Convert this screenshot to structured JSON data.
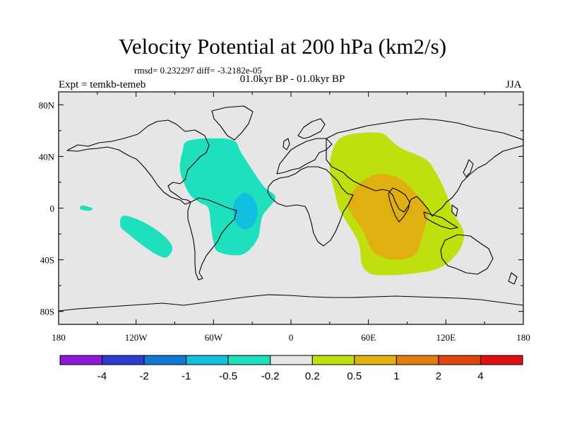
{
  "title": "Velocity Potential at 200 hPa (km2/s)",
  "stats_text": "rmsd= 0.232297 diff= -3.2182e-05",
  "period_text": "01.0kyr BP - 01.0kyr BP",
  "experiment_text": "Expt = temkb-temeb",
  "season": "JJA",
  "map": {
    "lon_range": [
      -180,
      180
    ],
    "lat_range": [
      -90,
      90
    ],
    "x_ticks": [
      {
        "lon": -180,
        "label": "180"
      },
      {
        "lon": -120,
        "label": "120W"
      },
      {
        "lon": -60,
        "label": "60W"
      },
      {
        "lon": 0,
        "label": "0"
      },
      {
        "lon": 60,
        "label": "60E"
      },
      {
        "lon": 120,
        "label": "120E"
      },
      {
        "lon": 180,
        "label": "180"
      }
    ],
    "y_ticks": [
      {
        "lat": 80,
        "label": "80N"
      },
      {
        "lat": 40,
        "label": "40N"
      },
      {
        "lat": 0,
        "label": "0"
      },
      {
        "lat": -40,
        "label": "40S"
      },
      {
        "lat": -80,
        "label": "80S"
      }
    ],
    "background_color": "#e6e6e6",
    "regions": [
      {
        "name": "atlantic-negative-region",
        "level": "-0.5 to -0.2",
        "color": "#1fe0bd",
        "outline": [
          [
            -80,
            52
          ],
          [
            -60,
            54
          ],
          [
            -44,
            52
          ],
          [
            -38,
            42
          ],
          [
            -22,
            18
          ],
          [
            -12,
            8
          ],
          [
            -22,
            -6
          ],
          [
            -26,
            -24
          ],
          [
            -38,
            -36
          ],
          [
            -56,
            -34
          ],
          [
            -60,
            -26
          ],
          [
            -62,
            -14
          ],
          [
            -64,
            0
          ],
          [
            -70,
            4
          ],
          [
            -78,
            10
          ],
          [
            -84,
            22
          ],
          [
            -86,
            32
          ],
          [
            -84,
            44
          ]
        ]
      },
      {
        "name": "atlantic-negative-core",
        "level": "-1 to -0.5",
        "color": "#12bfe0",
        "outline": [
          [
            -36,
            12
          ],
          [
            -28,
            6
          ],
          [
            -26,
            -4
          ],
          [
            -30,
            -14
          ],
          [
            -38,
            -16
          ],
          [
            -44,
            -8
          ],
          [
            -44,
            4
          ]
        ]
      },
      {
        "name": "pacific-negative-band",
        "level": "-0.5 to -0.2",
        "color": "#1fe0bd",
        "outline": [
          [
            -130,
            -6
          ],
          [
            -116,
            -10
          ],
          [
            -100,
            -20
          ],
          [
            -92,
            -30
          ],
          [
            -96,
            -38
          ],
          [
            -104,
            -36
          ],
          [
            -116,
            -28
          ],
          [
            -126,
            -20
          ],
          [
            -132,
            -14
          ]
        ]
      },
      {
        "name": "pacific-negative-patch",
        "level": "-0.5 to -0.2",
        "color": "#1fe0bd",
        "outline": [
          [
            -162,
            2
          ],
          [
            -154,
            0
          ],
          [
            -156,
            -2
          ],
          [
            -163,
            -1
          ]
        ]
      },
      {
        "name": "asia-positive-region",
        "level": "0.2 to 0.5",
        "color": "#c0df0f",
        "outline": [
          [
            32,
            44
          ],
          [
            38,
            54
          ],
          [
            52,
            58
          ],
          [
            70,
            58
          ],
          [
            78,
            52
          ],
          [
            86,
            46
          ],
          [
            104,
            38
          ],
          [
            112,
            28
          ],
          [
            120,
            12
          ],
          [
            126,
            -4
          ],
          [
            134,
            -20
          ],
          [
            128,
            -36
          ],
          [
            110,
            -48
          ],
          [
            70,
            -52
          ],
          [
            56,
            -46
          ],
          [
            52,
            -26
          ],
          [
            38,
            -2
          ],
          [
            34,
            12
          ],
          [
            30,
            30
          ]
        ]
      },
      {
        "name": "indian-ocean-positive-core",
        "level": "0.5 to 1",
        "color": "#e0b010",
        "outline": [
          [
            44,
            4
          ],
          [
            52,
            18
          ],
          [
            66,
            26
          ],
          [
            82,
            24
          ],
          [
            96,
            12
          ],
          [
            106,
            -2
          ],
          [
            102,
            -20
          ],
          [
            96,
            -36
          ],
          [
            80,
            -40
          ],
          [
            64,
            -34
          ],
          [
            56,
            -18
          ],
          [
            48,
            -6
          ]
        ]
      }
    ]
  },
  "colorbar": {
    "colors": [
      "#8a1ad4",
      "#2a3dd0",
      "#0f7ad6",
      "#15bfe0",
      "#1fe0bd",
      "#e6e6e6",
      "#c0df0f",
      "#e0b010",
      "#e07f10",
      "#e04510",
      "#e01010"
    ],
    "labels": [
      "-4",
      "-2",
      "-1",
      "-0.5",
      "-0.2",
      "0.2",
      "0.5",
      "1",
      "2",
      "4"
    ]
  }
}
